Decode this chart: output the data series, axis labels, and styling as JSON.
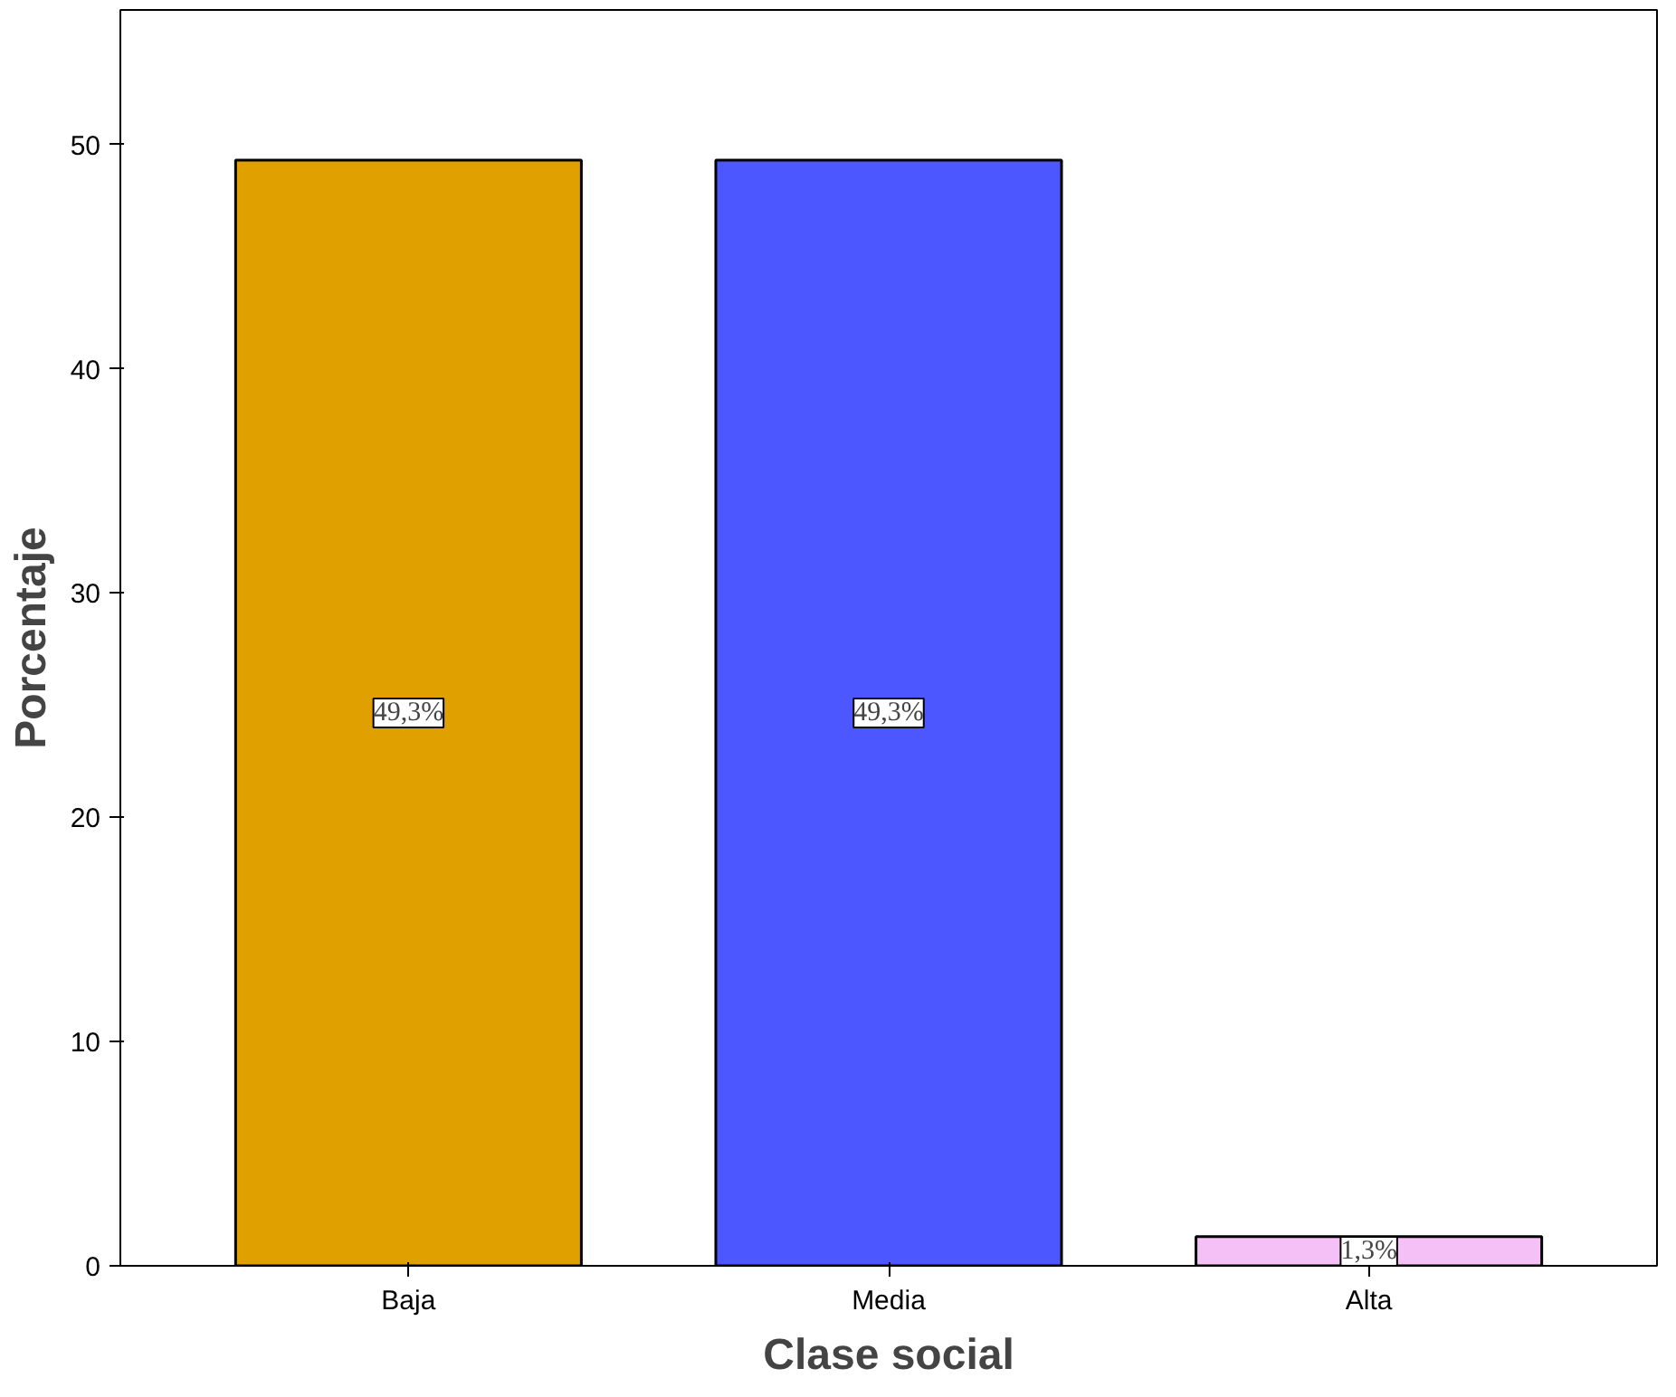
{
  "chart_data": {
    "type": "bar",
    "xlabel": "Clase social",
    "ylabel": "Porcentaje",
    "categories": [
      "Baja",
      "Media",
      "Alta"
    ],
    "values": [
      49.3,
      49.3,
      1.3
    ],
    "colors": [
      "#e0a000",
      "#4c57ff",
      "#f5c0f5"
    ],
    "value_labels": [
      "49,3%",
      "49,3%",
      "1,3%"
    ],
    "ylim": [
      0,
      56
    ],
    "yticks": [
      0,
      10,
      20,
      30,
      40,
      50
    ],
    "grid": false
  }
}
